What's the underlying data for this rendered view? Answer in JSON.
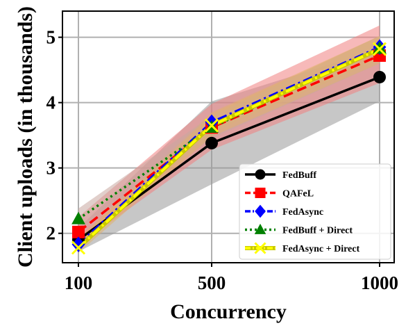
{
  "chart_data": {
    "type": "line",
    "xlabel": "Concurrency",
    "ylabel": "Client uploads (in thousands)",
    "categories": [
      "100",
      "500",
      "1000"
    ],
    "ylim": [
      1.55,
      5.4
    ],
    "yticks": [
      2,
      3,
      4,
      5
    ],
    "grid": true,
    "legend_position": "lower-right",
    "series": [
      {
        "name": "FedBuff",
        "values": [
          1.9,
          3.38,
          4.39
        ],
        "band_low": [
          1.72,
          2.75,
          4.02
        ],
        "band_high": [
          2.08,
          4.02,
          4.82
        ],
        "color": "#000000",
        "band_color": "#999999",
        "line_style": "solid",
        "marker": "circle"
      },
      {
        "name": "QAFeL",
        "values": [
          2.02,
          3.62,
          4.72
        ],
        "band_low": [
          1.82,
          3.28,
          4.3
        ],
        "band_high": [
          2.25,
          3.98,
          5.18
        ],
        "color": "#ff0000",
        "band_color": "#f08080",
        "line_style": "dashed",
        "marker": "square"
      },
      {
        "name": "FedAsync",
        "values": [
          1.83,
          3.7,
          4.85
        ],
        "band_low": [
          1.75,
          3.55,
          4.65
        ],
        "band_high": [
          1.92,
          3.85,
          5.02
        ],
        "color": "#0000ff",
        "band_color": "#e0b070",
        "line_style": "dashdot",
        "marker": "diamond"
      },
      {
        "name": "FedBuff + Direct",
        "values": [
          2.22,
          3.62,
          4.83
        ],
        "band_low": [
          2.05,
          3.45,
          4.6
        ],
        "band_high": [
          2.38,
          3.8,
          5.02
        ],
        "color": "#008000",
        "band_color": "#c8a8a0",
        "line_style": "dotted",
        "marker": "triangle"
      },
      {
        "name": "FedAsync + Direct",
        "values": [
          1.78,
          3.65,
          4.82
        ],
        "band_low": [
          1.7,
          3.48,
          4.6
        ],
        "band_high": [
          1.88,
          3.82,
          5.02
        ],
        "color": "#ffff00",
        "band_color": "#e0b070",
        "line_style": "dashdot",
        "marker": "x"
      }
    ]
  }
}
